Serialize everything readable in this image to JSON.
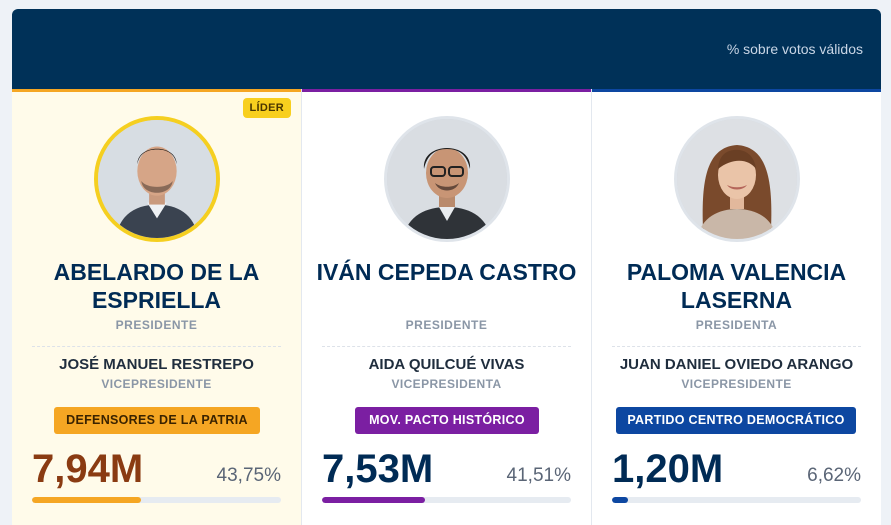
{
  "header": {
    "subtitle": "% sobre votos válidos"
  },
  "candidates": [
    {
      "name": "ABELARDO DE LA ESPRIELLA",
      "role": "PRESIDENTE",
      "vp_name": "JOSÉ MANUEL RESTREPO",
      "vp_role": "VICEPRESIDENTE",
      "party": "DEFENSORES DE LA PATRIA",
      "party_color": "#f5a623",
      "votes": "7,94M",
      "percent": "43,75%",
      "share": 0.4375,
      "badge": "LÍDER",
      "accent": "#f5a623",
      "votes_color": "#8a3b12"
    },
    {
      "name": "IVÁN CEPEDA CASTRO",
      "role": "PRESIDENTE",
      "vp_name": "AIDA QUILCUÉ VIVAS",
      "vp_role": "VICEPRESIDENTA",
      "party": "MOV. PACTO HISTÓRICO",
      "party_color": "#7b1fa2",
      "votes": "7,53M",
      "percent": "41,51%",
      "share": 0.4151,
      "accent": "#7b1fa2",
      "votes_color": "#002b55"
    },
    {
      "name": "PALOMA VALENCIA LASERNA",
      "role": "PRESIDENTA",
      "vp_name": "JUAN DANIEL OVIEDO ARANGO",
      "vp_role": "VICEPRESIDENTE",
      "party": "PARTIDO CENTRO DEMOCRÁTICO",
      "party_color": "#0d47a1",
      "votes": "1,20M",
      "percent": "6,62%",
      "share": 0.0662,
      "accent": "#0d47a1",
      "votes_color": "#002b55"
    }
  ]
}
